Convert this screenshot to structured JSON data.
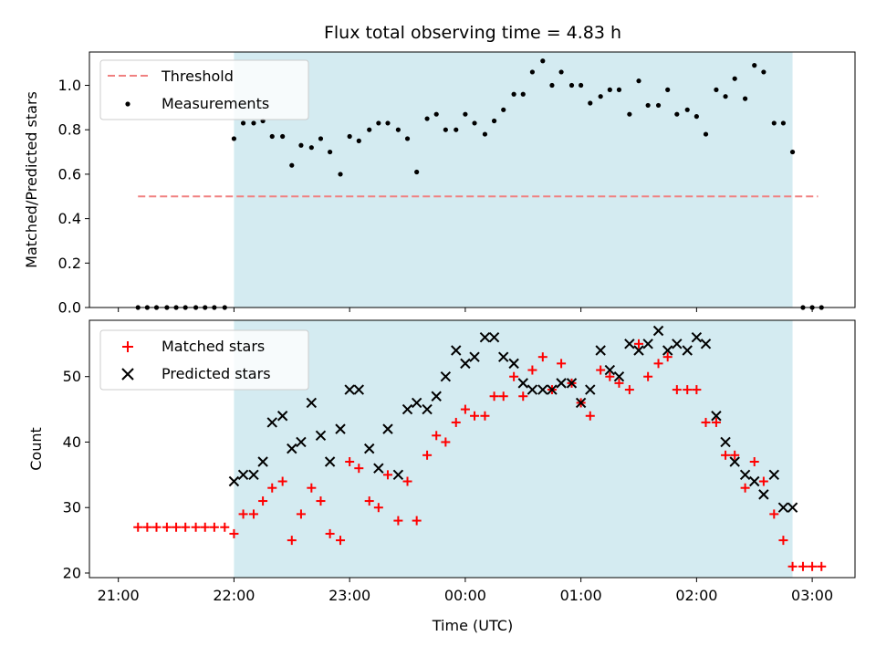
{
  "chart_data": {
    "type": "scatter",
    "title": "Flux total observing time = 4.83 h",
    "xlabel": "Time (UTC)",
    "x_ticks": [
      "21:00",
      "22:00",
      "23:00",
      "00:00",
      "01:00",
      "02:00",
      "03:00"
    ],
    "x_tick_hours": [
      0,
      1,
      2,
      3,
      4,
      5,
      6
    ],
    "x_unit": "hours after 21:00 UTC",
    "xlim": [
      -0.25,
      6.37
    ],
    "observing_window": [
      1.0,
      5.83
    ],
    "shade_color": "#d4ebf1",
    "top": {
      "ylabel": "Matched/Predicted stars",
      "ylim": [
        0,
        1.15
      ],
      "yticks": [
        "0.0",
        "0.2",
        "0.4",
        "0.6",
        "0.8",
        "1.0"
      ],
      "ytick_values": [
        0,
        0.2,
        0.4,
        0.6,
        0.8,
        1.0
      ],
      "legend": [
        "Threshold",
        "Measurements"
      ],
      "threshold": {
        "name": "Threshold",
        "y": 0.5,
        "x_range": [
          0.17,
          6.05
        ],
        "color": "#f08080"
      },
      "measurements": {
        "name": "Measurements",
        "color": "#000000",
        "x": [
          0.17,
          0.25,
          0.33,
          0.42,
          0.5,
          0.58,
          0.67,
          0.75,
          0.83,
          0.92,
          1.0,
          1.08,
          1.17,
          1.25,
          1.33,
          1.42,
          1.5,
          1.58,
          1.67,
          1.75,
          1.83,
          1.92,
          2.0,
          2.08,
          2.17,
          2.25,
          2.33,
          2.42,
          2.5,
          2.58,
          2.67,
          2.75,
          2.83,
          2.92,
          3.0,
          3.08,
          3.17,
          3.25,
          3.33,
          3.42,
          3.5,
          3.58,
          3.67,
          3.75,
          3.83,
          3.92,
          4.0,
          4.08,
          4.17,
          4.25,
          4.33,
          4.42,
          4.5,
          4.58,
          4.67,
          4.75,
          4.83,
          4.92,
          5.0,
          5.08,
          5.17,
          5.25,
          5.33,
          5.42,
          5.5,
          5.58,
          5.67,
          5.75,
          5.83,
          5.92,
          6.0,
          6.08
        ],
        "y": [
          0,
          0,
          0,
          0,
          0,
          0,
          0,
          0,
          0,
          0,
          0.76,
          0.83,
          0.83,
          0.84,
          0.77,
          0.77,
          0.64,
          0.73,
          0.72,
          0.76,
          0.7,
          0.6,
          0.77,
          0.75,
          0.8,
          0.83,
          0.83,
          0.8,
          0.76,
          0.61,
          0.85,
          0.87,
          0.8,
          0.8,
          0.87,
          0.83,
          0.78,
          0.84,
          0.89,
          0.96,
          0.96,
          1.06,
          1.11,
          1.0,
          1.06,
          1.0,
          1.0,
          0.92,
          0.95,
          0.98,
          0.98,
          0.87,
          1.02,
          0.91,
          0.91,
          0.98,
          0.87,
          0.89,
          0.86,
          0.78,
          0.98,
          0.95,
          1.03,
          0.94,
          1.09,
          1.06,
          0.83,
          0.83,
          0.7,
          0,
          0,
          0
        ]
      }
    },
    "bottom": {
      "ylabel": "Count",
      "ylim": [
        19.3,
        58.6
      ],
      "yticks": [
        "20",
        "30",
        "40",
        "50"
      ],
      "ytick_values": [
        20,
        30,
        40,
        50
      ],
      "legend": [
        "Matched stars",
        "Predicted stars"
      ],
      "series": [
        {
          "name": "Matched stars",
          "marker": "+",
          "color": "#ff0000",
          "x": [
            0.17,
            0.25,
            0.33,
            0.42,
            0.5,
            0.58,
            0.67,
            0.75,
            0.83,
            0.92,
            1.0,
            1.08,
            1.17,
            1.25,
            1.33,
            1.42,
            1.5,
            1.58,
            1.67,
            1.75,
            1.83,
            1.92,
            2.0,
            2.08,
            2.17,
            2.25,
            2.33,
            2.42,
            2.5,
            2.58,
            2.67,
            2.75,
            2.83,
            2.92,
            3.0,
            3.08,
            3.17,
            3.25,
            3.33,
            3.42,
            3.5,
            3.58,
            3.67,
            3.75,
            3.83,
            3.92,
            4.0,
            4.08,
            4.17,
            4.25,
            4.33,
            4.42,
            4.5,
            4.58,
            4.67,
            4.75,
            4.83,
            4.92,
            5.0,
            5.08,
            5.17,
            5.25,
            5.33,
            5.42,
            5.5,
            5.58,
            5.67,
            5.75,
            5.83,
            5.92,
            6.0,
            6.08
          ],
          "y": [
            27,
            27,
            27,
            27,
            27,
            27,
            27,
            27,
            27,
            27,
            26,
            29,
            29,
            31,
            33,
            34,
            25,
            29,
            33,
            31,
            26,
            25,
            37,
            36,
            31,
            30,
            35,
            28,
            34,
            28,
            38,
            41,
            40,
            43,
            45,
            44,
            44,
            47,
            47,
            50,
            47,
            51,
            53,
            48,
            52,
            49,
            46,
            44,
            51,
            50,
            49,
            48,
            55,
            50,
            52,
            53,
            48,
            48,
            48,
            43,
            43,
            38,
            38,
            33,
            37,
            34,
            29,
            25,
            21,
            21,
            21,
            21
          ]
        },
        {
          "name": "Predicted stars",
          "marker": "x",
          "color": "#000000",
          "x": [
            1.0,
            1.08,
            1.17,
            1.25,
            1.33,
            1.42,
            1.5,
            1.58,
            1.67,
            1.75,
            1.83,
            1.92,
            2.0,
            2.08,
            2.17,
            2.25,
            2.33,
            2.42,
            2.5,
            2.58,
            2.67,
            2.75,
            2.83,
            2.92,
            3.0,
            3.08,
            3.17,
            3.25,
            3.33,
            3.42,
            3.5,
            3.58,
            3.67,
            3.75,
            3.83,
            3.92,
            4.0,
            4.08,
            4.17,
            4.25,
            4.33,
            4.42,
            4.5,
            4.58,
            4.67,
            4.75,
            4.83,
            4.92,
            5.0,
            5.08,
            5.17,
            5.25,
            5.33,
            5.42,
            5.5,
            5.58,
            5.67,
            5.75,
            5.83
          ],
          "y": [
            34,
            35,
            35,
            37,
            43,
            44,
            39,
            40,
            46,
            41,
            37,
            42,
            48,
            48,
            39,
            36,
            42,
            35,
            45,
            46,
            45,
            47,
            50,
            54,
            52,
            53,
            56,
            56,
            53,
            52,
            49,
            48,
            48,
            48,
            49,
            49,
            46,
            48,
            54,
            51,
            50,
            55,
            54,
            55,
            57,
            54,
            55,
            54,
            56,
            55,
            44,
            40,
            37,
            35,
            34,
            32,
            35,
            30,
            30
          ]
        }
      ]
    }
  }
}
